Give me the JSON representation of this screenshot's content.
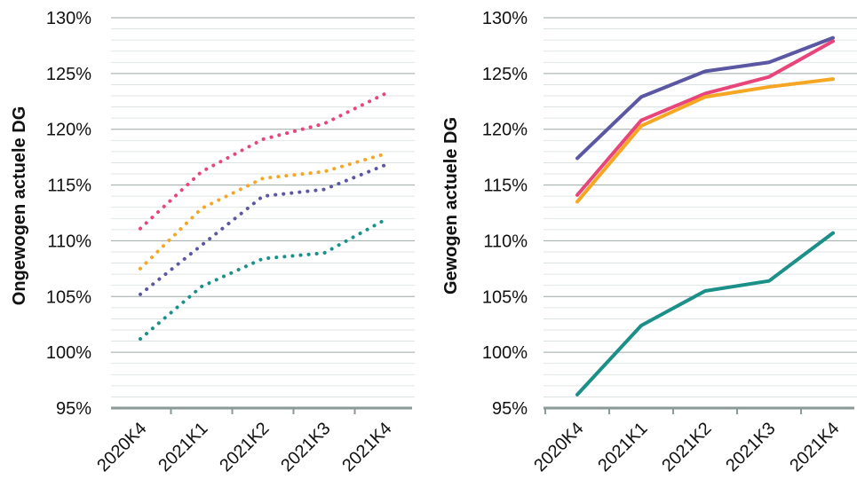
{
  "chart_data": [
    {
      "type": "line",
      "line_style": "dotted",
      "ylabel": "Ongewogen actuele DG",
      "categories": [
        "2020K4",
        "2021K1",
        "2021K2",
        "2021K3",
        "2021K4"
      ],
      "y_ticks": [
        "95%",
        "100%",
        "105%",
        "110%",
        "115%",
        "120%",
        "125%",
        "130%"
      ],
      "ylim": [
        95,
        130
      ],
      "grid": "horizontal",
      "series": [
        {
          "color": "#e8457a",
          "values": [
            111.1,
            116.2,
            119.1,
            120.5,
            123.2
          ]
        },
        {
          "color": "#f5a623",
          "values": [
            107.5,
            112.9,
            115.6,
            116.2,
            117.8
          ]
        },
        {
          "color": "#5b57a2",
          "values": [
            105.2,
            109.6,
            114.0,
            114.6,
            116.8
          ]
        },
        {
          "color": "#1a9088",
          "values": [
            101.2,
            105.9,
            108.4,
            108.9,
            111.9
          ]
        }
      ]
    },
    {
      "type": "line",
      "line_style": "solid",
      "ylabel": "Gewogen actuele DG",
      "categories": [
        "2020K4",
        "2021K1",
        "2021K2",
        "2021K3",
        "2021K4"
      ],
      "y_ticks": [
        "95%",
        "100%",
        "105%",
        "110%",
        "115%",
        "120%",
        "125%",
        "130%"
      ],
      "ylim": [
        95,
        130
      ],
      "grid": "horizontal",
      "series": [
        {
          "color": "#5b57a2",
          "values": [
            117.4,
            122.9,
            125.2,
            126.0,
            128.2
          ]
        },
        {
          "color": "#e8457a",
          "values": [
            114.1,
            120.8,
            123.2,
            124.7,
            127.9
          ]
        },
        {
          "color": "#f5a623",
          "values": [
            113.5,
            120.3,
            122.9,
            123.8,
            124.5
          ]
        },
        {
          "color": "#1a9088",
          "values": [
            96.2,
            102.4,
            105.5,
            106.4,
            110.7
          ]
        }
      ]
    }
  ]
}
